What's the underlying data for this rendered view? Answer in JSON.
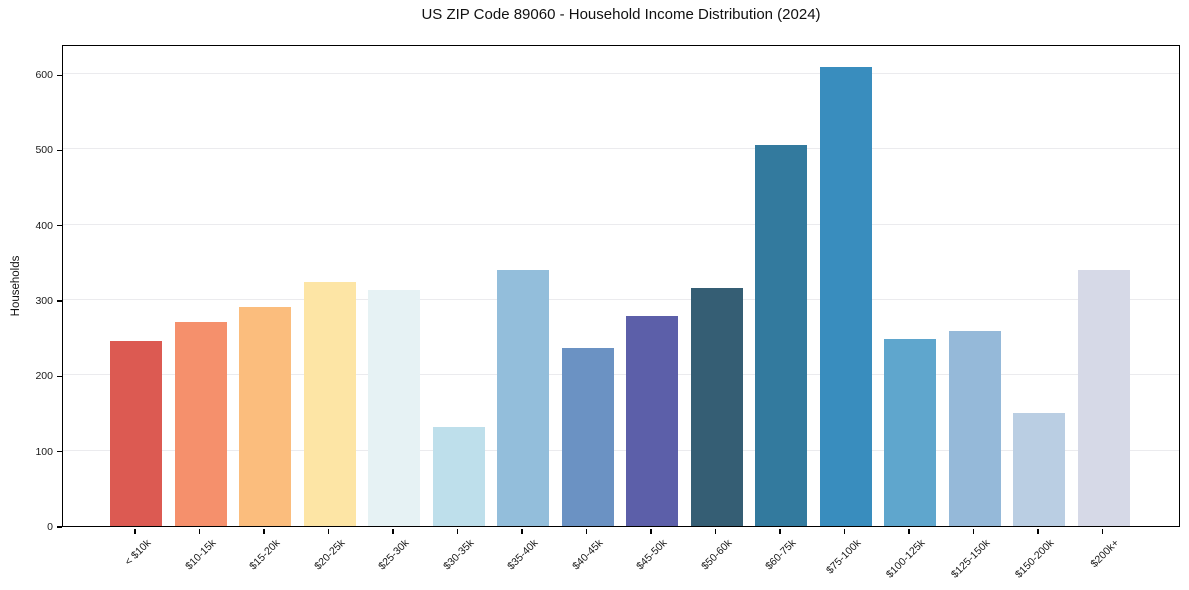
{
  "chart_data": {
    "type": "bar",
    "title": "US ZIP Code 89060 - Household Income Distribution (2024)",
    "ylabel": "Households",
    "xlabel": "",
    "categories": [
      "< $10k",
      "$10-15k",
      "$15-20k",
      "$20-25k",
      "$25-30k",
      "$30-35k",
      "$35-40k",
      "$40-45k",
      "$45-50k",
      "$50-60k",
      "$60-75k",
      "$75-100k",
      "$100-125k",
      "$125-150k",
      "$150-200k",
      "$200k+"
    ],
    "values": [
      245,
      271,
      291,
      324,
      314,
      132,
      340,
      236,
      279,
      316,
      506,
      610,
      248,
      259,
      150,
      340
    ],
    "bar_colors": [
      "#dc5a52",
      "#f5906c",
      "#fbbd7d",
      "#fde5a5",
      "#e6f2f4",
      "#bedfeb",
      "#93bedb",
      "#6b92c3",
      "#5c5fa9",
      "#355e74",
      "#337a9e",
      "#398dbe",
      "#5fa6cd",
      "#95b9d9",
      "#bacee3",
      "#d6d9e7"
    ],
    "ylim": [
      0,
      640
    ],
    "yticks": [
      0,
      100,
      200,
      300,
      400,
      500,
      600
    ],
    "grid": "horizontal",
    "legend": "none",
    "colors": {
      "background": "#ffffff",
      "grid": "#ebebee",
      "spine": "#000000",
      "text": "#1a1a1a"
    }
  }
}
